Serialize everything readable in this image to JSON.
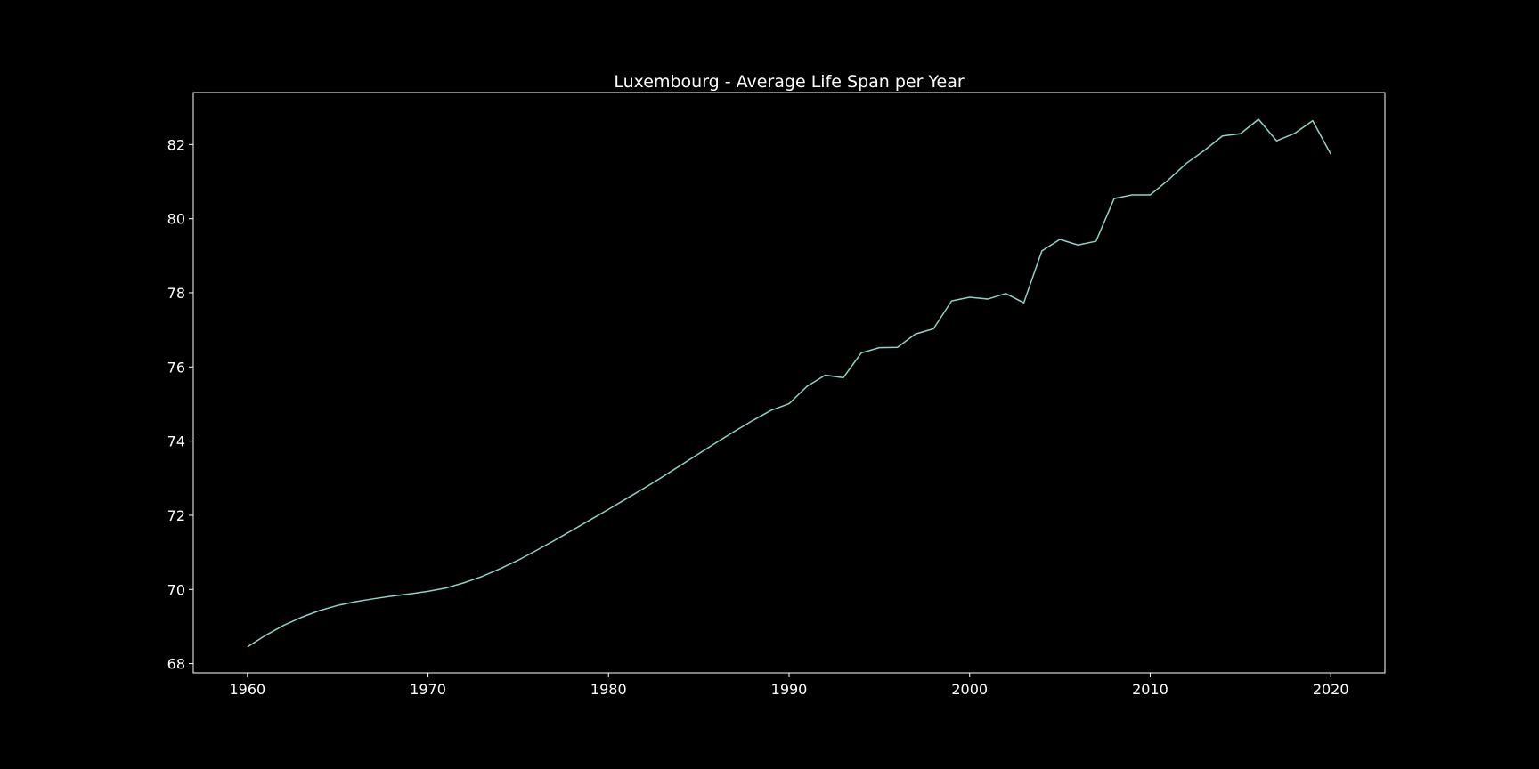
{
  "chart_data": {
    "type": "line",
    "title": "Luxembourg - Average Life Span per Year",
    "xlabel": "",
    "ylabel": "",
    "xlim": [
      1957,
      2023
    ],
    "ylim": [
      67.75,
      83.4
    ],
    "xticks": [
      "1960",
      "1970",
      "1980",
      "1990",
      "2000",
      "2010",
      "2020"
    ],
    "yticks": [
      "68",
      "70",
      "72",
      "74",
      "76",
      "78",
      "80",
      "82"
    ],
    "grid": false,
    "legend": "none",
    "colors": {
      "background": "#000000",
      "line": "#8dd3c7",
      "text": "#ffffff",
      "axes": "#ffffff"
    },
    "series": [
      {
        "x": [
          1960,
          1961,
          1962,
          1963,
          1964,
          1965,
          1966,
          1967,
          1968,
          1969,
          1970,
          1971,
          1972,
          1973,
          1974,
          1975,
          1976,
          1977,
          1978,
          1979,
          1980,
          1981,
          1982,
          1983,
          1984,
          1985,
          1986,
          1987,
          1988,
          1989,
          1990,
          1991,
          1992,
          1993,
          1994,
          1995,
          1996,
          1997,
          1998,
          1999,
          2000,
          2001,
          2002,
          2003,
          2004,
          2005,
          2006,
          2007,
          2008,
          2009,
          2010,
          2011,
          2012,
          2013,
          2014,
          2015,
          2016,
          2017,
          2018,
          2019,
          2020
        ],
        "y": [
          68.45,
          68.76,
          69.03,
          69.25,
          69.43,
          69.57,
          69.67,
          69.75,
          69.82,
          69.88,
          69.95,
          70.04,
          70.18,
          70.35,
          70.56,
          70.79,
          71.05,
          71.32,
          71.6,
          71.88,
          72.16,
          72.45,
          72.74,
          73.04,
          73.35,
          73.66,
          73.97,
          74.27,
          74.56,
          74.83,
          75.01,
          75.48,
          75.78,
          75.71,
          76.38,
          76.52,
          76.53,
          76.89,
          77.03,
          77.78,
          77.88,
          77.83,
          77.98,
          77.73,
          79.13,
          79.44,
          79.29,
          79.39,
          80.54,
          80.64,
          80.64,
          81.04,
          81.49,
          81.84,
          82.23,
          82.29,
          82.68,
          82.1,
          82.3,
          82.64,
          81.74
        ]
      }
    ]
  }
}
